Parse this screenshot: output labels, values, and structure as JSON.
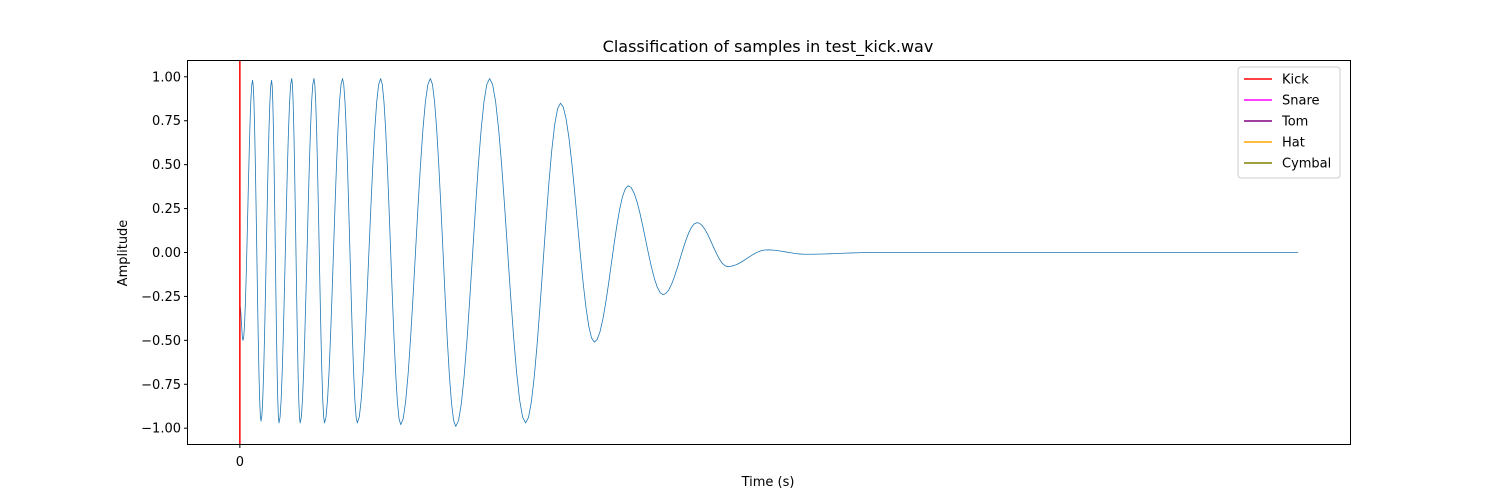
{
  "chart_data": {
    "type": "line",
    "title": "Classification of samples in test_kick.wav",
    "xlabel": "Time (s)",
    "ylabel": "Amplitude",
    "x_ticks": [
      {
        "value": 0,
        "label": "0"
      }
    ],
    "y_ticks": [
      {
        "value": 1.0,
        "label": "1.00"
      },
      {
        "value": 0.75,
        "label": "0.75"
      },
      {
        "value": 0.5,
        "label": "0.50"
      },
      {
        "value": 0.25,
        "label": "0.25"
      },
      {
        "value": 0.0,
        "label": "0.00"
      },
      {
        "value": -0.25,
        "label": "−0.25"
      },
      {
        "value": -0.5,
        "label": "−0.50"
      },
      {
        "value": -0.75,
        "label": "−0.75"
      },
      {
        "value": -1.0,
        "label": "−1.00"
      }
    ],
    "ylim": [
      -1.09,
      1.09
    ],
    "xlim": [
      -0.049,
      1.049
    ],
    "grid": false,
    "legend_position": "top-right",
    "legend": [
      {
        "label": "Kick",
        "color": "#ff0000"
      },
      {
        "label": "Snare",
        "color": "#ff00ff"
      },
      {
        "label": "Tom",
        "color": "#800080"
      },
      {
        "label": "Hat",
        "color": "#ffa500"
      },
      {
        "label": "Cymbal",
        "color": "#808000"
      }
    ],
    "onset_markers": [
      {
        "class": "Kick",
        "x": 0,
        "color": "#ff0000"
      }
    ],
    "waveform": {
      "color": "#1f77b4",
      "peaks": [
        {
          "x": 0.0,
          "y": -0.3
        },
        {
          "x": 0.003,
          "y": -0.5
        },
        {
          "x": 0.012,
          "y": 0.98
        },
        {
          "x": 0.02,
          "y": -0.96
        },
        {
          "x": 0.03,
          "y": 0.98
        },
        {
          "x": 0.037,
          "y": -0.97
        },
        {
          "x": 0.049,
          "y": 0.99
        },
        {
          "x": 0.057,
          "y": -0.97
        },
        {
          "x": 0.07,
          "y": 0.99
        },
        {
          "x": 0.08,
          "y": -0.97
        },
        {
          "x": 0.097,
          "y": 0.99
        },
        {
          "x": 0.111,
          "y": -0.97
        },
        {
          "x": 0.133,
          "y": 0.99
        },
        {
          "x": 0.152,
          "y": -0.98
        },
        {
          "x": 0.18,
          "y": 0.99
        },
        {
          "x": 0.204,
          "y": -0.99
        },
        {
          "x": 0.236,
          "y": 0.99
        },
        {
          "x": 0.27,
          "y": -0.97
        },
        {
          "x": 0.303,
          "y": 0.85
        },
        {
          "x": 0.335,
          "y": -0.51
        },
        {
          "x": 0.367,
          "y": 0.38
        },
        {
          "x": 0.4,
          "y": -0.24
        },
        {
          "x": 0.432,
          "y": 0.17
        },
        {
          "x": 0.461,
          "y": -0.08
        },
        {
          "x": 0.498,
          "y": 0.015
        },
        {
          "x": 0.535,
          "y": -0.01
        },
        {
          "x": 0.6,
          "y": 0.0
        },
        {
          "x": 1.0,
          "y": 0.0
        }
      ]
    }
  }
}
